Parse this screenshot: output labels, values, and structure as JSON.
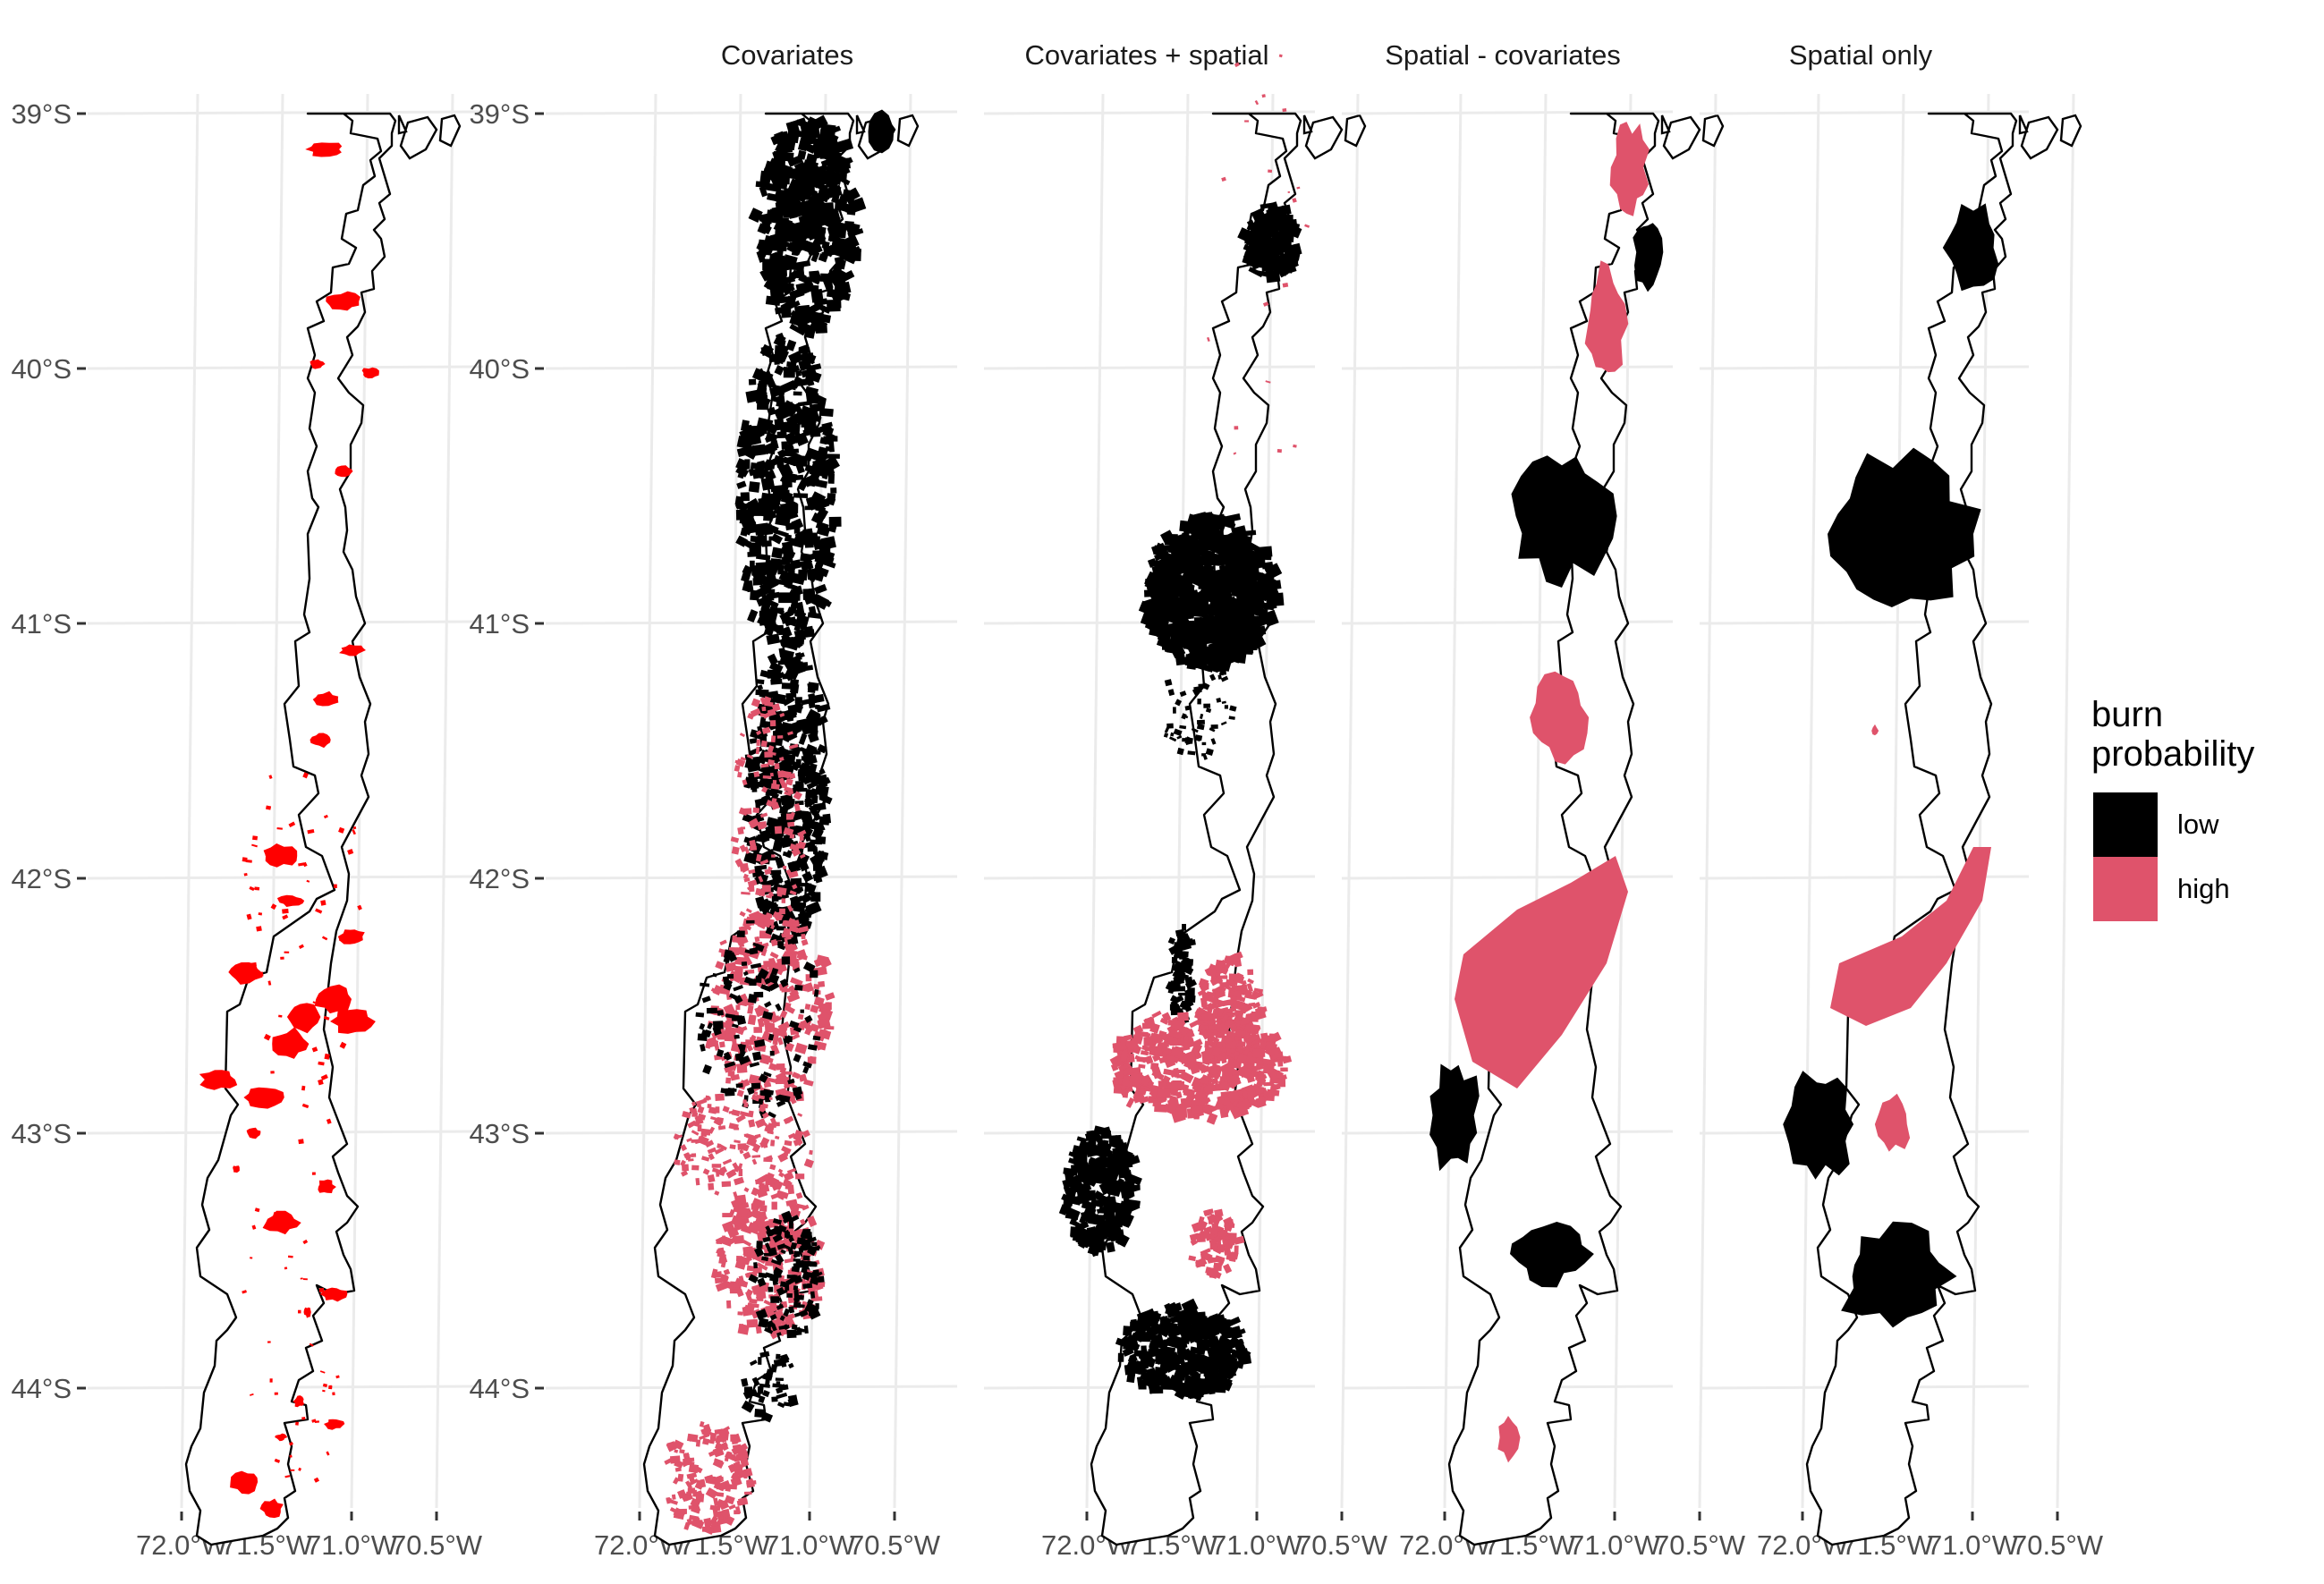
{
  "panels": [
    {
      "id": "observed",
      "strip": ""
    },
    {
      "id": "covariates",
      "strip": "Covariates"
    },
    {
      "id": "covariates-spatial",
      "strip": "Covariates + spatial"
    },
    {
      "id": "spatial-covariates",
      "strip": "Spatial - covariates"
    },
    {
      "id": "spatial-only",
      "strip": "Spatial only"
    }
  ],
  "axes": {
    "y_labels": [
      "39°S",
      "40°S",
      "41°S",
      "42°S",
      "43°S",
      "44°S"
    ],
    "x_labels": [
      "72.0°W",
      "71.5°W",
      "71.0°W",
      "70.5°W"
    ]
  },
  "legend": {
    "title_line1": "burn",
    "title_line2": "probability",
    "items": [
      {
        "label": "low",
        "color": "#000000"
      },
      {
        "label": "high",
        "color": "#df536b"
      }
    ]
  },
  "colors": {
    "observed_fire": "#ff0000",
    "low": "#000000",
    "high": "#df536b"
  }
}
